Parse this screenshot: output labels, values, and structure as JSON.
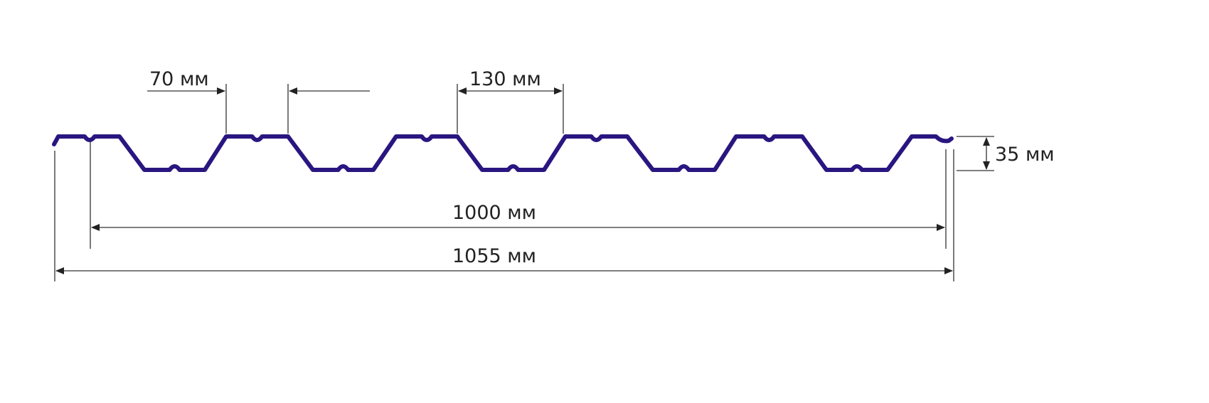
{
  "dimensions": {
    "rib_top_width": "70 мм",
    "rib_pitch": "130 мм",
    "profile_height": "35 мм",
    "useful_width": "1000 мм",
    "total_width": "1055 мм"
  },
  "colors": {
    "profile": "#2a1680",
    "dimension_lines": "#333333"
  }
}
